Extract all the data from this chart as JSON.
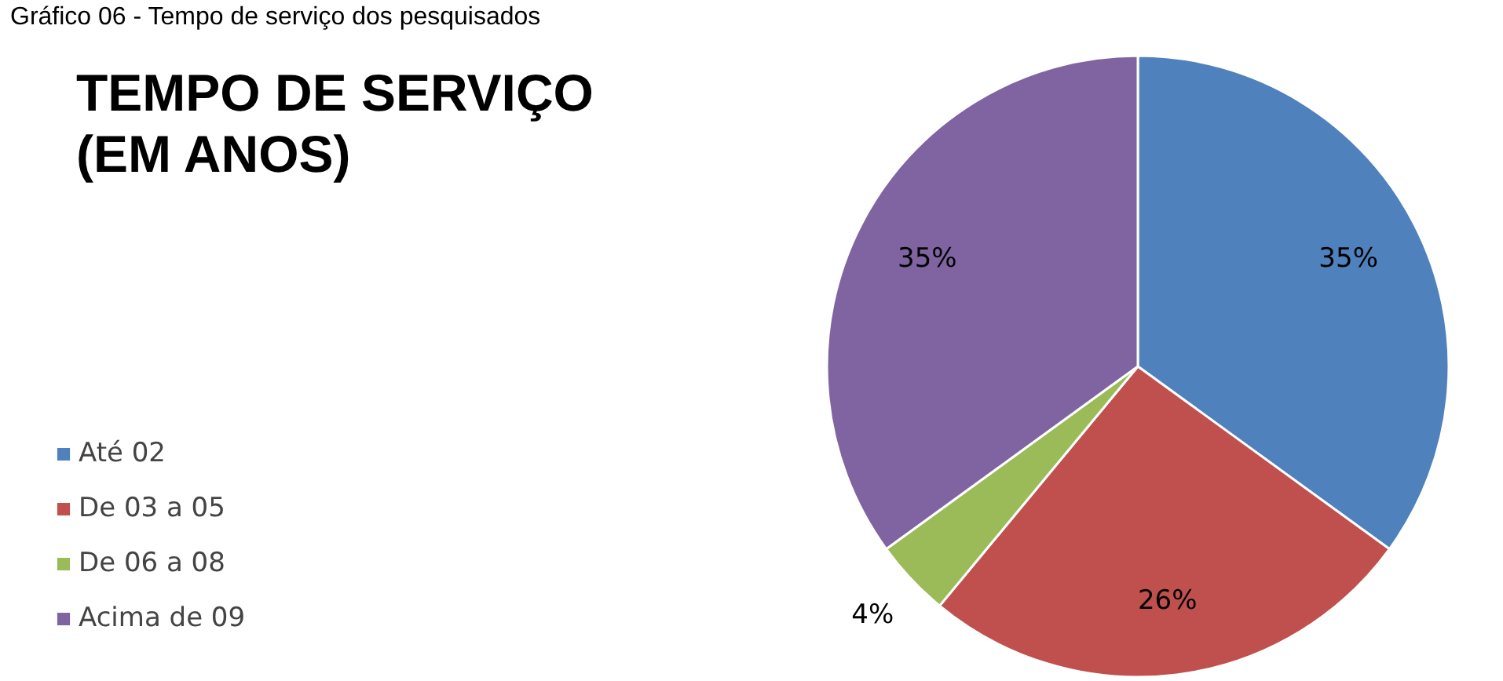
{
  "chart_data": {
    "type": "pie",
    "title": "TEMPO DE SERVIÇO (EM ANOS)",
    "annotations": [
      "Gráfico 06 - Tempo de serviço dos pesquisados"
    ],
    "categories": [
      "Até 02",
      "De 03 a 05",
      "De 06 a 08",
      "Acima de 09"
    ],
    "values": [
      35,
      26,
      4,
      35
    ],
    "colors": [
      "#4f81bd",
      "#c0504d",
      "#9bbb59",
      "#8064a2"
    ],
    "value_labels": [
      "35%",
      "26%",
      "4%",
      "35%"
    ],
    "legend": "left"
  }
}
